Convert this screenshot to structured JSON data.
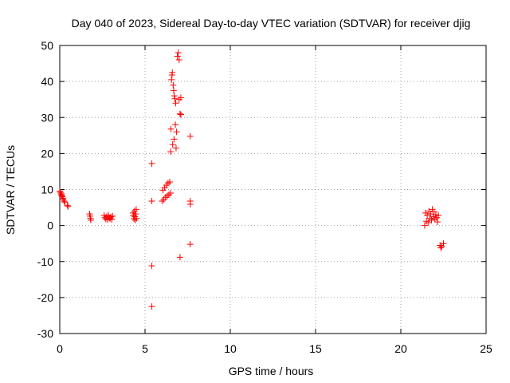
{
  "chart_data": {
    "type": "scatter",
    "title": "Day 040 of 2023, Sidereal Day-to-day VTEC variation (SDTVAR) for receiver djig",
    "xlabel": "GPS time / hours",
    "ylabel": "SDTVAR / TECUs",
    "xlim": [
      0,
      25
    ],
    "ylim": [
      -30,
      50
    ],
    "xticks": [
      0,
      5,
      10,
      15,
      20,
      25
    ],
    "yticks": [
      -30,
      -20,
      -10,
      0,
      10,
      20,
      30,
      40,
      50
    ],
    "grid": true,
    "marker": "+",
    "color": "#ff0000",
    "series": [
      {
        "name": "SDTVAR",
        "points": [
          [
            0.0,
            9.5
          ],
          [
            0.05,
            9.2
          ],
          [
            0.08,
            8.8
          ],
          [
            0.1,
            8.5
          ],
          [
            0.12,
            8.3
          ],
          [
            0.15,
            8.0
          ],
          [
            0.18,
            7.6
          ],
          [
            0.2,
            7.3
          ],
          [
            0.25,
            6.8
          ],
          [
            0.3,
            6.5
          ],
          [
            0.45,
            5.6
          ],
          [
            0.48,
            5.3
          ],
          [
            1.75,
            3.2
          ],
          [
            1.78,
            2.6
          ],
          [
            1.8,
            2.0
          ],
          [
            1.82,
            1.5
          ],
          [
            2.6,
            2.8
          ],
          [
            2.65,
            2.2
          ],
          [
            2.7,
            1.8
          ],
          [
            2.75,
            2.5
          ],
          [
            2.8,
            1.6
          ],
          [
            2.85,
            2.9
          ],
          [
            2.9,
            2.1
          ],
          [
            2.95,
            1.9
          ],
          [
            3.0,
            2.4
          ],
          [
            3.05,
            1.7
          ],
          [
            3.1,
            2.6
          ],
          [
            4.3,
            3.5
          ],
          [
            4.32,
            2.8
          ],
          [
            4.35,
            1.9
          ],
          [
            4.38,
            4.0
          ],
          [
            4.4,
            2.5
          ],
          [
            4.42,
            1.5
          ],
          [
            4.45,
            3.2
          ],
          [
            4.48,
            4.5
          ],
          [
            4.5,
            2.0
          ],
          [
            5.4,
            17.2
          ],
          [
            5.4,
            6.8
          ],
          [
            5.4,
            -11.2
          ],
          [
            5.4,
            -22.5
          ],
          [
            6.0,
            6.8
          ],
          [
            6.05,
            9.8
          ],
          [
            6.1,
            7.2
          ],
          [
            6.15,
            10.5
          ],
          [
            6.2,
            7.8
          ],
          [
            6.25,
            11.2
          ],
          [
            6.3,
            8.2
          ],
          [
            6.35,
            11.8
          ],
          [
            6.4,
            8.6
          ],
          [
            6.45,
            12.1
          ],
          [
            6.5,
            9.0
          ],
          [
            6.5,
            20.5
          ],
          [
            6.52,
            26.8
          ],
          [
            6.55,
            40.5
          ],
          [
            6.58,
            41.8
          ],
          [
            6.6,
            42.5
          ],
          [
            6.62,
            22.5
          ],
          [
            6.65,
            39.0
          ],
          [
            6.68,
            37.5
          ],
          [
            6.7,
            24.0
          ],
          [
            6.72,
            36.0
          ],
          [
            6.75,
            35.2
          ],
          [
            6.78,
            28.0
          ],
          [
            6.8,
            34.0
          ],
          [
            6.82,
            21.5
          ],
          [
            6.85,
            26.0
          ],
          [
            6.9,
            47.0
          ],
          [
            6.95,
            48.0
          ],
          [
            7.0,
            46.0
          ],
          [
            7.0,
            35.0
          ],
          [
            7.05,
            31.0
          ],
          [
            7.05,
            -8.8
          ],
          [
            7.1,
            35.5
          ],
          [
            7.1,
            30.8
          ],
          [
            7.65,
            24.8
          ],
          [
            7.65,
            6.8
          ],
          [
            7.65,
            5.9
          ],
          [
            7.65,
            -5.2
          ],
          [
            21.4,
            0.0
          ],
          [
            21.45,
            3.5
          ],
          [
            21.5,
            1.2
          ],
          [
            21.55,
            2.8
          ],
          [
            21.6,
            0.8
          ],
          [
            21.65,
            4.0
          ],
          [
            21.7,
            2.0
          ],
          [
            21.75,
            3.2
          ],
          [
            21.8,
            1.5
          ],
          [
            21.85,
            4.5
          ],
          [
            21.9,
            2.5
          ],
          [
            21.95,
            3.8
          ],
          [
            22.0,
            1.8
          ],
          [
            22.05,
            3.0
          ],
          [
            22.1,
            2.2
          ],
          [
            22.15,
            1.0
          ],
          [
            22.2,
            2.8
          ],
          [
            22.3,
            -5.5
          ],
          [
            22.35,
            -6.2
          ],
          [
            22.4,
            -5.8
          ],
          [
            22.5,
            -5.0
          ]
        ]
      }
    ]
  }
}
